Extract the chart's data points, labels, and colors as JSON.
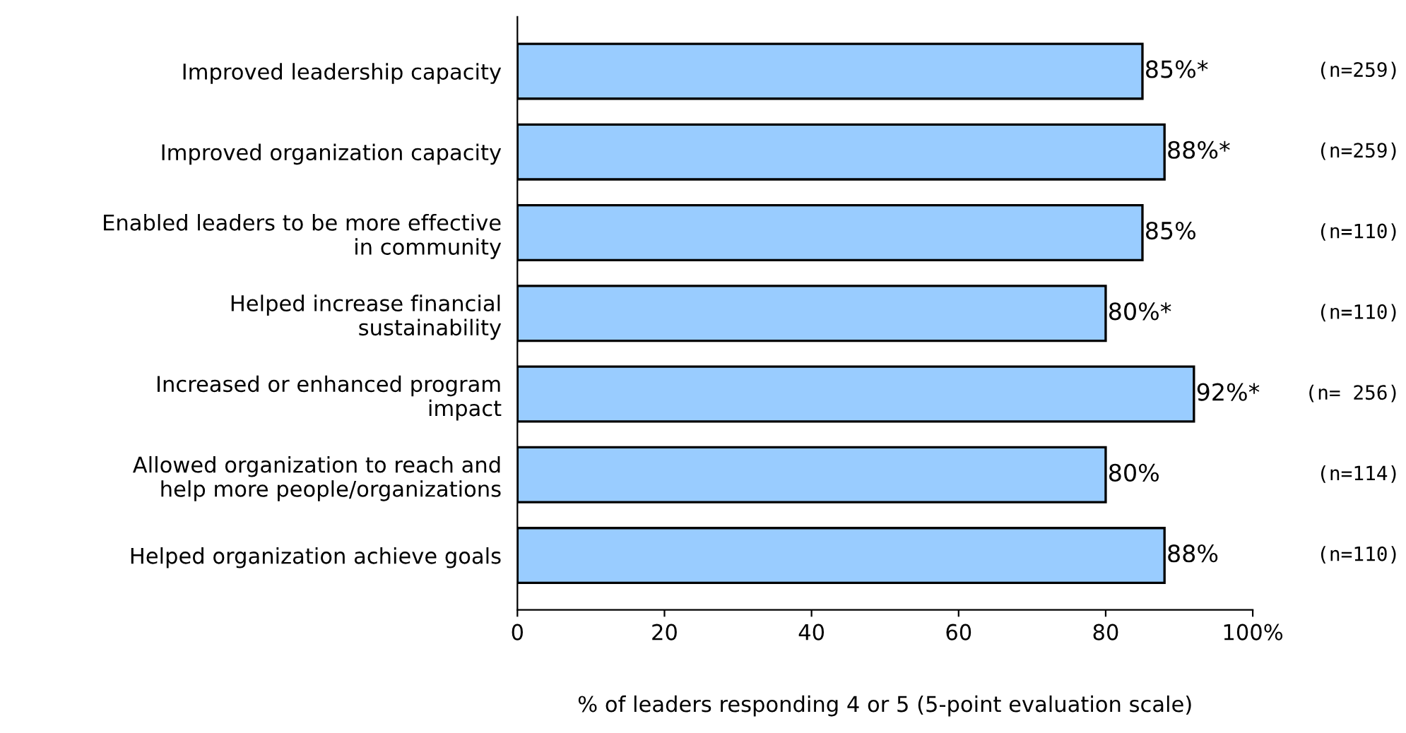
{
  "chart_data": {
    "type": "bar",
    "orientation": "horizontal",
    "xlabel": "% of leaders responding 4 or 5 (5-point evaluation scale)",
    "categories": [
      "Improved leadership capacity",
      "Improved organization capacity",
      "Enabled leaders to be more effective\nin community",
      "Helped increase financial\nsustainability",
      "Increased or enhanced program\nimpact",
      "Allowed organization to reach and\nhelp more people/organizations",
      "Helped organization achieve goals"
    ],
    "values": [
      85,
      88,
      85,
      80,
      92,
      80,
      88
    ],
    "value_labels": [
      "85%*",
      "88%*",
      "85%",
      "80%*",
      "92%*",
      "80%",
      "88%"
    ],
    "color": "#99ccff",
    "xlim": [
      0,
      100
    ],
    "xticks": [
      0,
      20,
      40,
      60,
      80,
      {
        "value": 100,
        "label": "100%"
      }
    ],
    "grid": false,
    "legend": false,
    "annotations": [
      "(n=259)",
      "(n=259)",
      "(n=110)",
      "(n=110)",
      "(n= 256)",
      "(n=114)",
      "(n=110)"
    ]
  }
}
